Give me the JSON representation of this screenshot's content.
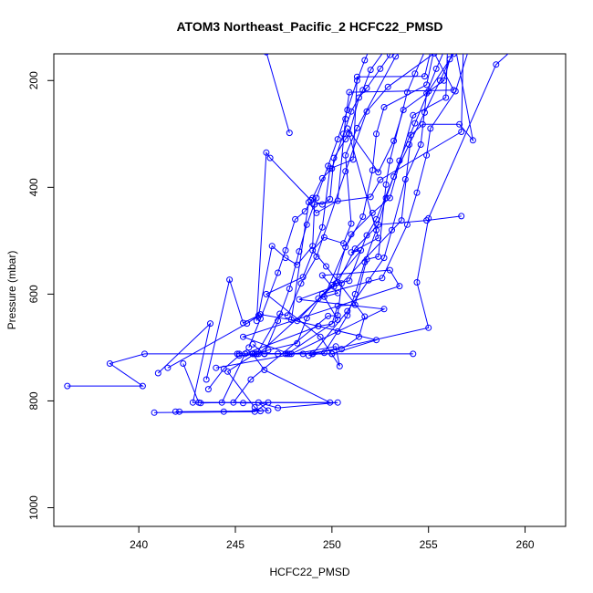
{
  "chart_data": {
    "type": "line",
    "title": "ATOM3 Northeast_Pacific_2 HCFC22_PMSD",
    "xlabel": "HCFC22_PMSD",
    "ylabel": "Pressure (mbar)",
    "xlim": [
      235.6,
      262.1
    ],
    "ylim": [
      1035,
      150
    ],
    "y_reversed": true,
    "grid": false,
    "x_ticks": [
      240,
      245,
      250,
      255,
      260
    ],
    "y_ticks": [
      200,
      400,
      600,
      800,
      1000
    ],
    "marker": "open-circle",
    "color": "#0000ff",
    "series": [
      {
        "points": [
          [
            236.3,
            772
          ],
          [
            240.2,
            772
          ],
          [
            238.5,
            730
          ],
          [
            240.3,
            712
          ],
          [
            254.2,
            712
          ]
        ]
      },
      {
        "points": [
          [
            241.0,
            748
          ],
          [
            243.7,
            655
          ],
          [
            242.8,
            803
          ],
          [
            250.3,
            803
          ],
          [
            247.2,
            813
          ],
          [
            246.2,
            803
          ],
          [
            246.7,
            818
          ],
          [
            244.4,
            820
          ]
        ]
      },
      {
        "points": [
          [
            245.2,
            712
          ],
          [
            250.0,
            712
          ],
          [
            247.8,
            712
          ],
          [
            245.4,
            680
          ],
          [
            253.5,
            585
          ],
          [
            253.0,
            555
          ],
          [
            249.5,
            565
          ],
          [
            250.3,
            598
          ],
          [
            249.3,
            608
          ],
          [
            250.3,
            578
          ],
          [
            251.2,
            515
          ],
          [
            252.4,
            470
          ],
          [
            254.9,
            462
          ],
          [
            256.7,
            454
          ]
        ]
      },
      {
        "points": [
          [
            242.3,
            730
          ],
          [
            243.1,
            803
          ],
          [
            249.9,
            803
          ],
          [
            246.5,
            742
          ],
          [
            245.9,
            712
          ],
          [
            249.0,
            712
          ],
          [
            255.0,
            663
          ],
          [
            254.4,
            578
          ],
          [
            255.0,
            458
          ],
          [
            258.5,
            170
          ],
          [
            259.8,
            128
          ]
        ]
      },
      {
        "points": [
          [
            244.0,
            738
          ],
          [
            250.2,
            698
          ],
          [
            250.4,
            735
          ],
          [
            249.4,
            680
          ],
          [
            246.6,
            600
          ],
          [
            248.5,
            568
          ],
          [
            249.5,
            475
          ],
          [
            249.9,
            365
          ],
          [
            251.1,
            348
          ],
          [
            251.3,
            193
          ],
          [
            254.8,
            192
          ],
          [
            255.2,
            132
          ]
        ]
      },
      {
        "points": [
          [
            241.5,
            738
          ],
          [
            245.6,
            655
          ],
          [
            246.3,
            638
          ],
          [
            248.2,
            650
          ],
          [
            250.0,
            583
          ],
          [
            251.5,
            518
          ],
          [
            251.0,
            522
          ],
          [
            252.4,
            495
          ],
          [
            250.8,
            290
          ],
          [
            252.4,
            372
          ],
          [
            253.2,
            313
          ],
          [
            253.7,
            255
          ],
          [
            255.8,
            200
          ],
          [
            256.1,
            160
          ],
          [
            257.0,
            115
          ]
        ]
      },
      {
        "points": [
          [
            240.8,
            822
          ],
          [
            246.0,
            820
          ],
          [
            246.7,
            803
          ],
          [
            245.4,
            804
          ],
          [
            244.9,
            803
          ],
          [
            245.8,
            760
          ],
          [
            249.8,
            641
          ],
          [
            250.3,
            640
          ],
          [
            250.5,
            580
          ],
          [
            253.6,
            462
          ],
          [
            254.1,
            302
          ],
          [
            254.7,
            282
          ],
          [
            256.6,
            282
          ],
          [
            257.3,
            312
          ],
          [
            256.4,
            140
          ]
        ]
      },
      {
        "points": [
          [
            241.9,
            820
          ],
          [
            242.1,
            820
          ],
          [
            246.3,
            819
          ],
          [
            246.0,
            812
          ],
          [
            244.6,
            745
          ],
          [
            246.0,
            712
          ],
          [
            250.0,
            712
          ],
          [
            252.3,
            686
          ],
          [
            247.9,
            648
          ],
          [
            248.8,
            428
          ],
          [
            249.2,
            448
          ],
          [
            250.3,
            425
          ],
          [
            250.7,
            272
          ],
          [
            250.9,
            222
          ],
          [
            256.3,
            218
          ],
          [
            254.6,
            100
          ]
        ]
      },
      {
        "points": [
          [
            243.5,
            760
          ],
          [
            244.7,
            573
          ],
          [
            245.4,
            654
          ],
          [
            246.2,
            640
          ],
          [
            246.9,
            510
          ],
          [
            247.6,
            532
          ],
          [
            248.2,
            545
          ],
          [
            249.0,
            510
          ],
          [
            249.1,
            432
          ],
          [
            252.0,
            418
          ],
          [
            252.5,
            386
          ],
          [
            256.7,
            296
          ],
          [
            256.8,
            140
          ],
          [
            257.5,
            100
          ]
        ]
      },
      {
        "points": [
          [
            243.2,
            804
          ],
          [
            244.3,
            803
          ],
          [
            245.5,
            712
          ],
          [
            246.1,
            712
          ],
          [
            247.3,
            637
          ],
          [
            247.7,
            640
          ],
          [
            248.4,
            580
          ],
          [
            249.2,
            530
          ],
          [
            250.7,
            370
          ],
          [
            251.8,
            258
          ],
          [
            252.9,
            212
          ],
          [
            255.3,
            149
          ],
          [
            255.6,
            99
          ]
        ]
      },
      {
        "points": [
          [
            243.6,
            778
          ],
          [
            244.4,
            740
          ],
          [
            245.2,
            715
          ],
          [
            246.5,
            712
          ],
          [
            247.7,
            712
          ],
          [
            250.3,
            648
          ],
          [
            249.6,
            605
          ],
          [
            251.0,
            488
          ],
          [
            252.1,
            448
          ],
          [
            253.0,
            420
          ],
          [
            254.2,
            265
          ],
          [
            255.9,
            232
          ],
          [
            256.0,
            122
          ]
        ]
      },
      {
        "points": [
          [
            245.1,
            712
          ],
          [
            245.9,
            712
          ],
          [
            247.2,
            712
          ],
          [
            248.5,
            712
          ],
          [
            250.5,
            703
          ],
          [
            251.4,
            680
          ],
          [
            251.7,
            642
          ],
          [
            249.7,
            548
          ],
          [
            249.0,
            518
          ],
          [
            249.6,
            494
          ],
          [
            250.6,
            505
          ],
          [
            251.0,
            468
          ],
          [
            250.7,
            340
          ],
          [
            251.3,
            289
          ],
          [
            253.3,
            155
          ],
          [
            254.2,
            120
          ]
        ]
      },
      {
        "points": [
          [
            245.6,
            710
          ],
          [
            249.3,
            660
          ],
          [
            250.0,
            656
          ],
          [
            250.3,
            622
          ],
          [
            251.2,
            620
          ],
          [
            251.8,
            535
          ],
          [
            252.4,
            530
          ],
          [
            252.8,
            395
          ],
          [
            253.0,
            350
          ],
          [
            253.9,
            222
          ],
          [
            254.3,
            187
          ],
          [
            255.2,
            113
          ]
        ]
      },
      {
        "points": [
          [
            245.9,
            694
          ],
          [
            246.5,
            712
          ],
          [
            247.9,
            712
          ],
          [
            252.7,
            628
          ],
          [
            248.3,
            610
          ],
          [
            250.1,
            586
          ],
          [
            250.7,
            512
          ],
          [
            251.6,
            455
          ],
          [
            252.1,
            368
          ],
          [
            252.3,
            300
          ],
          [
            252.7,
            250
          ],
          [
            254.9,
            208
          ],
          [
            255.5,
            108
          ]
        ]
      },
      {
        "points": [
          [
            246.1,
            712
          ],
          [
            247.6,
            712
          ],
          [
            249.0,
            712
          ],
          [
            250.8,
            632
          ],
          [
            251.9,
            574
          ],
          [
            252.7,
            532
          ],
          [
            253.1,
            480
          ],
          [
            253.8,
            385
          ],
          [
            254.6,
            320
          ],
          [
            254.9,
            224
          ],
          [
            255.4,
            178
          ],
          [
            256.3,
            104
          ]
        ]
      },
      {
        "points": [
          [
            246.1,
            650
          ],
          [
            246.6,
            335
          ],
          [
            246.8,
            345
          ],
          [
            248.9,
            424
          ],
          [
            249.5,
            432
          ],
          [
            249.9,
            422
          ],
          [
            250.1,
            345
          ],
          [
            250.7,
            310
          ],
          [
            250.9,
            300
          ],
          [
            251.4,
            232
          ],
          [
            251.8,
            214
          ],
          [
            252.5,
            178
          ],
          [
            253.0,
            152
          ],
          [
            253.3,
            126
          ]
        ]
      },
      {
        "points": [
          [
            245.7,
            700
          ],
          [
            246.3,
            646
          ],
          [
            247.2,
            560
          ],
          [
            247.6,
            518
          ],
          [
            248.1,
            460
          ],
          [
            248.6,
            445
          ],
          [
            249.0,
            420
          ],
          [
            249.5,
            383
          ],
          [
            250.0,
            365
          ],
          [
            250.6,
            300
          ],
          [
            251.0,
            258
          ],
          [
            251.6,
            218
          ],
          [
            252.0,
            180
          ],
          [
            252.8,
            140
          ],
          [
            253.5,
            115
          ]
        ]
      },
      {
        "points": [
          [
            246.5,
            712
          ],
          [
            247.2,
            650
          ],
          [
            247.8,
            590
          ],
          [
            248.3,
            520
          ],
          [
            248.7,
            470
          ],
          [
            249.2,
            420
          ],
          [
            249.8,
            360
          ],
          [
            250.3,
            310
          ],
          [
            250.8,
            255
          ],
          [
            251.3,
            200
          ],
          [
            251.7,
            162
          ],
          [
            252.2,
            120
          ]
        ]
      },
      {
        "points": [
          [
            246.1,
            712
          ],
          [
            246.7,
            705
          ],
          [
            248.2,
            692
          ],
          [
            248.7,
            645
          ],
          [
            249.5,
            600
          ],
          [
            252.6,
            570
          ],
          [
            253.9,
            470
          ],
          [
            254.4,
            410
          ],
          [
            254.9,
            340
          ],
          [
            255.1,
            290
          ],
          [
            256.4,
            220
          ],
          [
            257.1,
            140
          ]
        ]
      },
      {
        "points": [
          [
            247.8,
            298
          ],
          [
            246.6,
            147
          ],
          [
            246.3,
            137
          ],
          [
            246.0,
            120
          ]
        ]
      },
      {
        "points": [
          [
            248.8,
            715
          ],
          [
            249.6,
            710
          ],
          [
            250.3,
            670
          ],
          [
            250.8,
            640
          ],
          [
            251.2,
            600
          ],
          [
            251.7,
            540
          ],
          [
            252.3,
            480
          ],
          [
            252.8,
            420
          ],
          [
            253.5,
            350
          ],
          [
            254.3,
            280
          ],
          [
            255.0,
            220
          ],
          [
            256.3,
            150
          ]
        ]
      },
      {
        "points": [
          [
            246.2,
            712
          ],
          [
            250.2,
            580
          ],
          [
            250.9,
            575
          ],
          [
            251.8,
            490
          ],
          [
            252.3,
            460
          ],
          [
            253.2,
            380
          ],
          [
            254.0,
            320
          ],
          [
            254.8,
            260
          ],
          [
            255.6,
            200
          ],
          [
            256.5,
            130
          ]
        ]
      }
    ]
  }
}
